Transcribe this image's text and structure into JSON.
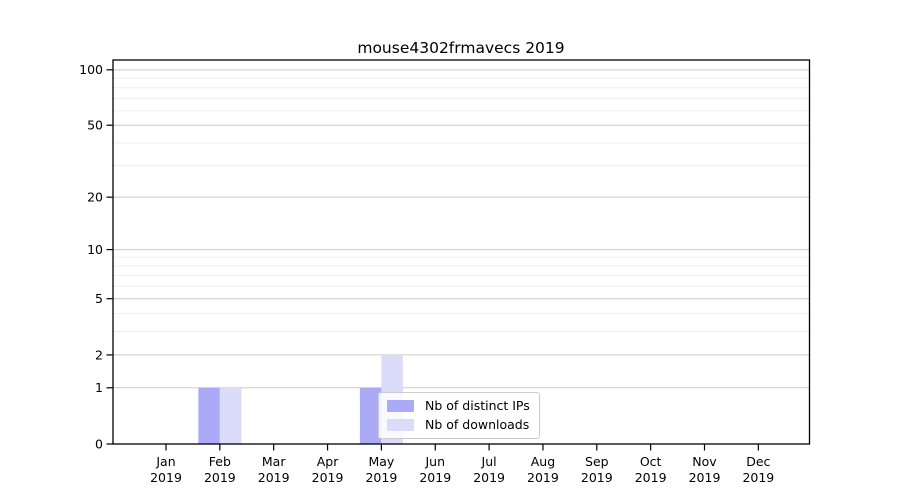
{
  "title": "mouse4302frmavecs 2019",
  "legend": {
    "items": [
      {
        "label": "Nb of distinct IPs",
        "color": "#aaaaf7"
      },
      {
        "label": "Nb of downloads",
        "color": "#dbdbfa"
      }
    ]
  },
  "chart_data": {
    "type": "bar",
    "title": "mouse4302frmavecs 2019",
    "x_months": [
      "Jan",
      "Feb",
      "Mar",
      "Apr",
      "May",
      "Jun",
      "Jul",
      "Aug",
      "Sep",
      "Oct",
      "Nov",
      "Dec"
    ],
    "x_year": "2019",
    "categories": [
      "Jan 2019",
      "Feb 2019",
      "Mar 2019",
      "Apr 2019",
      "May 2019",
      "Jun 2019",
      "Jul 2019",
      "Aug 2019",
      "Sep 2019",
      "Oct 2019",
      "Nov 2019",
      "Dec 2019"
    ],
    "series": [
      {
        "name": "Nb of distinct IPs",
        "color": "#aaaaf7",
        "values": [
          0,
          1,
          0,
          0,
          1,
          0,
          0,
          0,
          0,
          0,
          0,
          0
        ]
      },
      {
        "name": "Nb of downloads",
        "color": "#dbdbfa",
        "values": [
          0,
          1,
          0,
          0,
          2,
          0,
          0,
          0,
          0,
          0,
          0,
          0
        ]
      }
    ],
    "yscale": "log1p",
    "ylim": [
      0,
      113
    ],
    "y_major_ticks": [
      0,
      1,
      2,
      5,
      10,
      20,
      50,
      100
    ],
    "y_minor_gridlines": [
      3,
      4,
      6,
      7,
      8,
      9,
      30,
      40,
      60,
      70,
      80,
      90
    ],
    "grid": true,
    "legend_position": "inside-bottom-center-right",
    "colors": {
      "major_grid": "#cccccc",
      "minor_grid": "#ededed",
      "axis": "#000000",
      "background": "#ffffff"
    }
  }
}
